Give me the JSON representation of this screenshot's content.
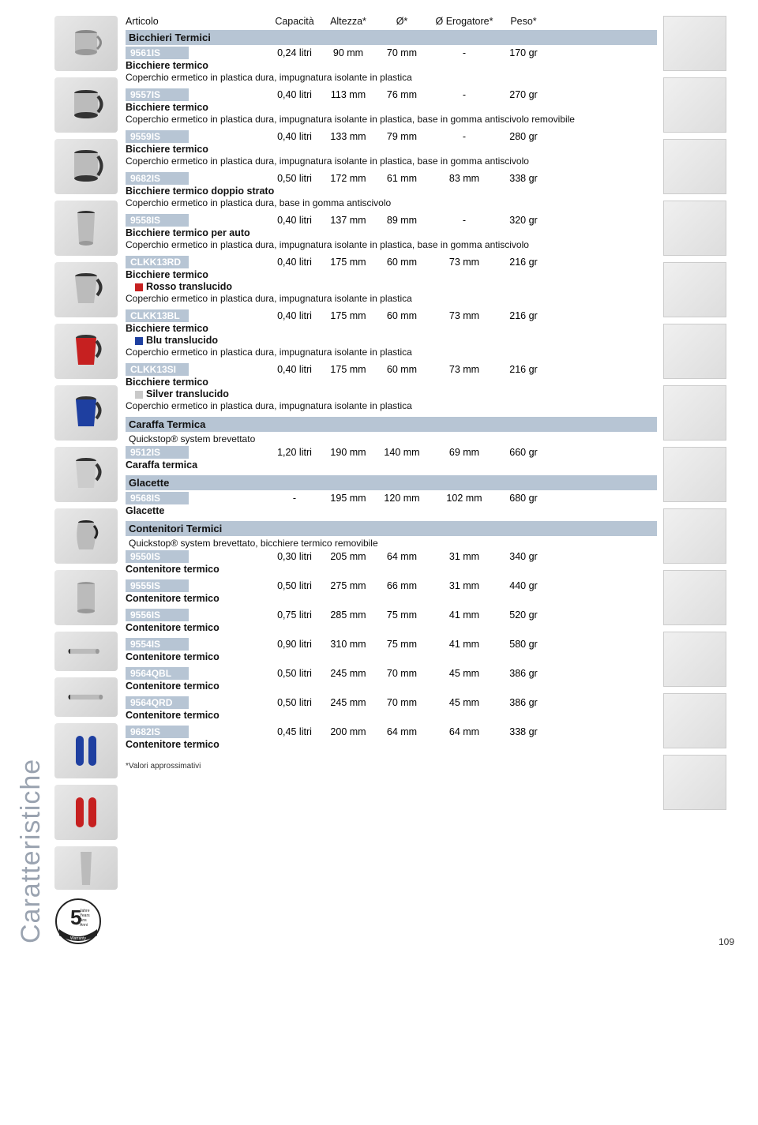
{
  "vertical_title": "Caratteristiche",
  "columns": {
    "articolo": "Articolo",
    "capacita": "Capacità",
    "altezza": "Altezza*",
    "diametro": "Ø*",
    "erogatore": "Ø Erogatore*",
    "peso": "Peso*"
  },
  "sections": [
    {
      "id": "bicchieri",
      "title": "Bicchieri Termici",
      "subtitle": ""
    },
    {
      "id": "caraffa",
      "title": "Caraffa Termica",
      "subtitle": "Quickstop® system brevettato"
    },
    {
      "id": "glacette",
      "title": "Glacette",
      "subtitle": ""
    },
    {
      "id": "contenitori",
      "title": "Contenitori Termici",
      "subtitle": "Quickstop® system brevettato, bicchiere termico removibile"
    }
  ],
  "products": [
    {
      "code": "9561IS",
      "section": "bicchieri",
      "cap": "0,24 litri",
      "alt": "90 mm",
      "dia": "70 mm",
      "ero": "-",
      "peso": "170 gr",
      "name": "Bicchiere termico",
      "desc": "Coperchio ermetico in plastica dura, impugnatura isolante in plastica"
    },
    {
      "code": "9557IS",
      "section": "bicchieri",
      "cap": "0,40 litri",
      "alt": "113 mm",
      "dia": "76 mm",
      "ero": "-",
      "peso": "270 gr",
      "name": "Bicchiere termico",
      "desc": "Coperchio ermetico in plastica dura, impugnatura isolante in plastica, base in gomma antiscivolo removibile"
    },
    {
      "code": "9559IS",
      "section": "bicchieri",
      "cap": "0,40 litri",
      "alt": "133 mm",
      "dia": "79 mm",
      "ero": "-",
      "peso": "280 gr",
      "name": "Bicchiere termico",
      "desc": "Coperchio ermetico in plastica dura, impugnatura isolante in plastica, base in gomma antiscivolo"
    },
    {
      "code": "9682IS",
      "section": "bicchieri",
      "cap": "0,50 litri",
      "alt": "172 mm",
      "dia": "61 mm",
      "ero": "83 mm",
      "peso": "338 gr",
      "name": "Bicchiere termico doppio strato",
      "desc": "Coperchio ermetico in plastica dura, base in gomma antiscivolo"
    },
    {
      "code": "9558IS",
      "section": "bicchieri",
      "cap": "0,40 litri",
      "alt": "137 mm",
      "dia": "89 mm",
      "ero": "-",
      "peso": "320 gr",
      "name": "Bicchiere termico per auto",
      "desc": "Coperchio ermetico in plastica dura, impugnatura isolante in plastica, base in gomma antiscivolo"
    },
    {
      "code": "CLKK13RD",
      "section": "bicchieri",
      "cap": "0,40 litri",
      "alt": "175 mm",
      "dia": "60 mm",
      "ero": "73 mm",
      "peso": "216 gr",
      "name": "Bicchiere termico",
      "color_name": "Rosso translucido",
      "color_hex": "#c62020",
      "desc": "Coperchio ermetico in plastica dura, impugnatura isolante in plastica"
    },
    {
      "code": "CLKK13BL",
      "section": "bicchieri",
      "cap": "0,40 litri",
      "alt": "175 mm",
      "dia": "60 mm",
      "ero": "73 mm",
      "peso": "216 gr",
      "name": "Bicchiere termico",
      "color_name": "Blu translucido",
      "color_hex": "#1e3fa0",
      "desc": "Coperchio ermetico in plastica dura, impugnatura isolante in plastica"
    },
    {
      "code": "CLKK13SI",
      "section": "bicchieri",
      "cap": "0,40 litri",
      "alt": "175 mm",
      "dia": "60 mm",
      "ero": "73 mm",
      "peso": "216 gr",
      "name": "Bicchiere termico",
      "color_name": "Silver translucido",
      "color_hex": "#c9c9c9",
      "desc": "Coperchio ermetico in plastica dura, impugnatura isolante in plastica"
    },
    {
      "code": "9512IS",
      "section": "caraffa",
      "cap": "1,20 litri",
      "alt": "190 mm",
      "dia": "140 mm",
      "ero": "69 mm",
      "peso": "660 gr",
      "name": "Caraffa termica"
    },
    {
      "code": "9568IS",
      "section": "glacette",
      "cap": "-",
      "alt": "195 mm",
      "dia": "120 mm",
      "ero": "102 mm",
      "peso": "680 gr",
      "name": "Glacette"
    },
    {
      "code": "9550IS",
      "section": "contenitori",
      "cap": "0,30 litri",
      "alt": "205 mm",
      "dia": "64 mm",
      "ero": "31 mm",
      "peso": "340 gr",
      "name": "Contenitore termico"
    },
    {
      "code": "9555IS",
      "section": "contenitori",
      "cap": "0,50 litri",
      "alt": "275 mm",
      "dia": "66 mm",
      "ero": "31 mm",
      "peso": "440 gr",
      "name": "Contenitore termico"
    },
    {
      "code": "9556IS",
      "section": "contenitori",
      "cap": "0,75 litri",
      "alt": "285 mm",
      "dia": "75 mm",
      "ero": "41 mm",
      "peso": "520 gr",
      "name": "Contenitore termico"
    },
    {
      "code": "9554IS",
      "section": "contenitori",
      "cap": "0,90 litri",
      "alt": "310 mm",
      "dia": "75 mm",
      "ero": "41 mm",
      "peso": "580 gr",
      "name": "Contenitore termico"
    },
    {
      "code": "9564QBL",
      "section": "contenitori",
      "cap": "0,50 litri",
      "alt": "245 mm",
      "dia": "70 mm",
      "ero": "45 mm",
      "peso": "386 gr",
      "name": "Contenitore termico"
    },
    {
      "code": "9564QRD",
      "section": "contenitori",
      "cap": "0,50 litri",
      "alt": "245 mm",
      "dia": "70 mm",
      "ero": "45 mm",
      "peso": "386 gr",
      "name": "Contenitore termico"
    },
    {
      "code": "9682IS",
      "section": "contenitori",
      "cap": "0,45 litri",
      "alt": "200 mm",
      "dia": "64 mm",
      "ero": "64 mm",
      "peso": "338 gr",
      "name": "Contenitore termico"
    }
  ],
  "footnote": "*Valori approssimativi",
  "page_num": "109",
  "warranty": {
    "number": "5",
    "lines": [
      "Jahre",
      "Years",
      "Ans",
      "Anni"
    ],
    "bottom": [
      "Garantie",
      "Warranty",
      "Garanzia"
    ]
  },
  "colors": {
    "section_bg": "#b7c5d4",
    "chip_bg": "#b7c5d4",
    "chip_text": "#ffffff",
    "text": "#111111",
    "vertical_text": "#9aa3b0"
  }
}
